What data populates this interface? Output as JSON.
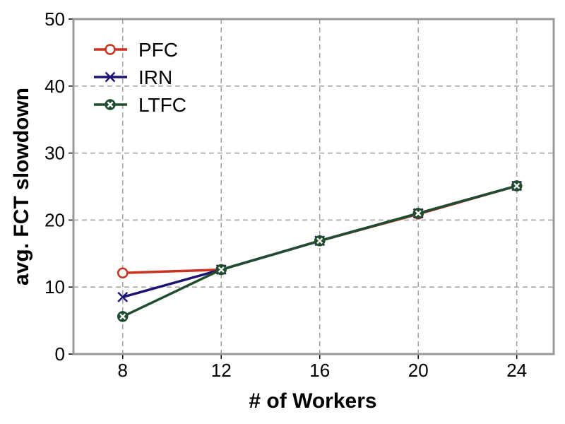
{
  "chart_data": {
    "type": "line",
    "xlabel": "# of Workers",
    "ylabel": "avg. FCT slowdown",
    "x": [
      8,
      12,
      16,
      20,
      24
    ],
    "xlim": [
      6,
      25.5
    ],
    "ylim": [
      0,
      50
    ],
    "xticks": [
      "8",
      "12",
      "16",
      "20",
      "24"
    ],
    "yticks": [
      "0",
      "10",
      "20",
      "30",
      "40",
      "50"
    ],
    "grid": true,
    "legend_position": "top-left",
    "series": [
      {
        "name": "PFC",
        "values": [
          12.1,
          12.6,
          16.9,
          20.9,
          25.1
        ],
        "color": "#c8321e",
        "marker": "open-circle"
      },
      {
        "name": "IRN",
        "values": [
          8.5,
          12.6,
          16.9,
          21.0,
          25.1
        ],
        "color": "#1c1470",
        "marker": "x"
      },
      {
        "name": "LTFC",
        "values": [
          5.6,
          12.6,
          16.9,
          21.0,
          25.1
        ],
        "color": "#1f4d2e",
        "marker": "circle-x"
      }
    ]
  }
}
